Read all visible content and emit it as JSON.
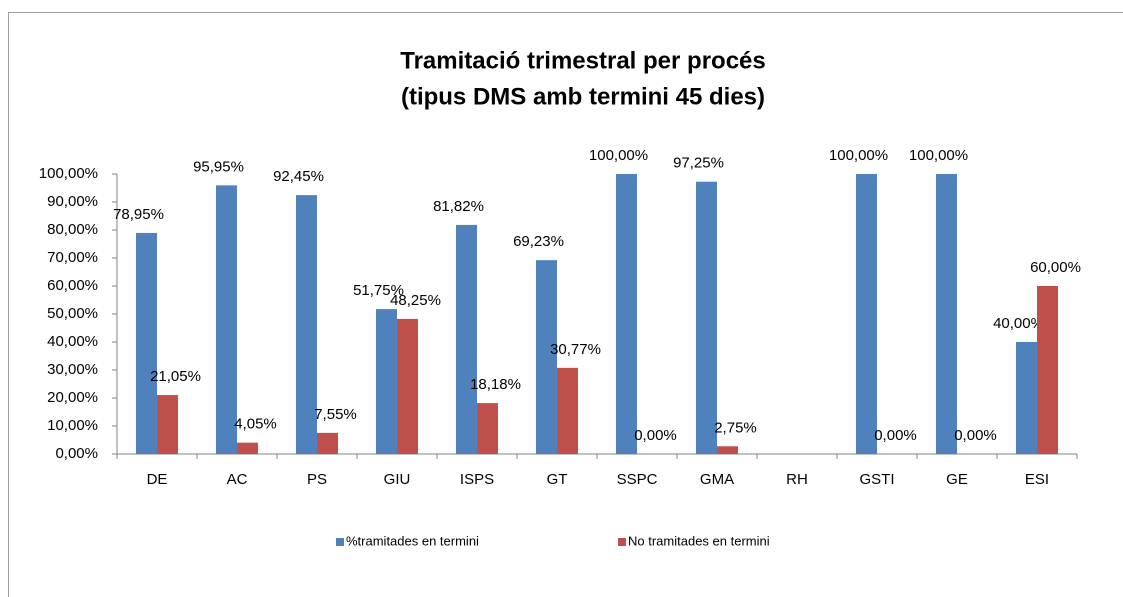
{
  "chart_data": {
    "type": "bar",
    "title": [
      "Tramitació trimestral per procés",
      "(tipus DMS amb termini 45 dies)"
    ],
    "categories": [
      "DE",
      "AC",
      "PS",
      "GIU",
      "ISPS",
      "GT",
      "SSPC",
      "GMA",
      "RH",
      "GSTI",
      "GE",
      "ESI"
    ],
    "series": [
      {
        "name": "%tramitades en termini",
        "color": "#4f81bd",
        "values": [
          78.95,
          95.95,
          92.45,
          51.75,
          81.82,
          69.23,
          100,
          97.25,
          null,
          100,
          100,
          40
        ],
        "value_labels": [
          "78,95%",
          "95,95%",
          "92,45%",
          "51,75%",
          "81,82%",
          "69,23%",
          "100,00%",
          "97,25%",
          null,
          "100,00%",
          "100,00%",
          "40,00%"
        ]
      },
      {
        "name": "No tramitades en termini",
        "color": "#c0504d",
        "values": [
          21.05,
          4.05,
          7.55,
          48.25,
          18.18,
          30.77,
          0,
          2.75,
          null,
          0,
          0,
          60
        ],
        "value_labels": [
          "21,05%",
          "4,05%",
          "7,55%",
          "48,25%",
          "18,18%",
          "30,77%",
          "0,00%",
          "2,75%",
          null,
          "0,00%",
          "0,00%",
          "60,00%"
        ]
      }
    ],
    "ylim": [
      0,
      100
    ],
    "yticks": [
      {
        "value": 0,
        "label": "0,00%"
      },
      {
        "value": 10,
        "label": "10,00%"
      },
      {
        "value": 20,
        "label": "20,00%"
      },
      {
        "value": 30,
        "label": "30,00%"
      },
      {
        "value": 40,
        "label": "40,00%"
      },
      {
        "value": 50,
        "label": "50,00%"
      },
      {
        "value": 60,
        "label": "60,00%"
      },
      {
        "value": 70,
        "label": "70,00%"
      },
      {
        "value": 80,
        "label": "80,00%"
      },
      {
        "value": 90,
        "label": "90,00%"
      },
      {
        "value": 100,
        "label": "100,00%"
      }
    ],
    "grid": false,
    "legend": "bottom"
  }
}
